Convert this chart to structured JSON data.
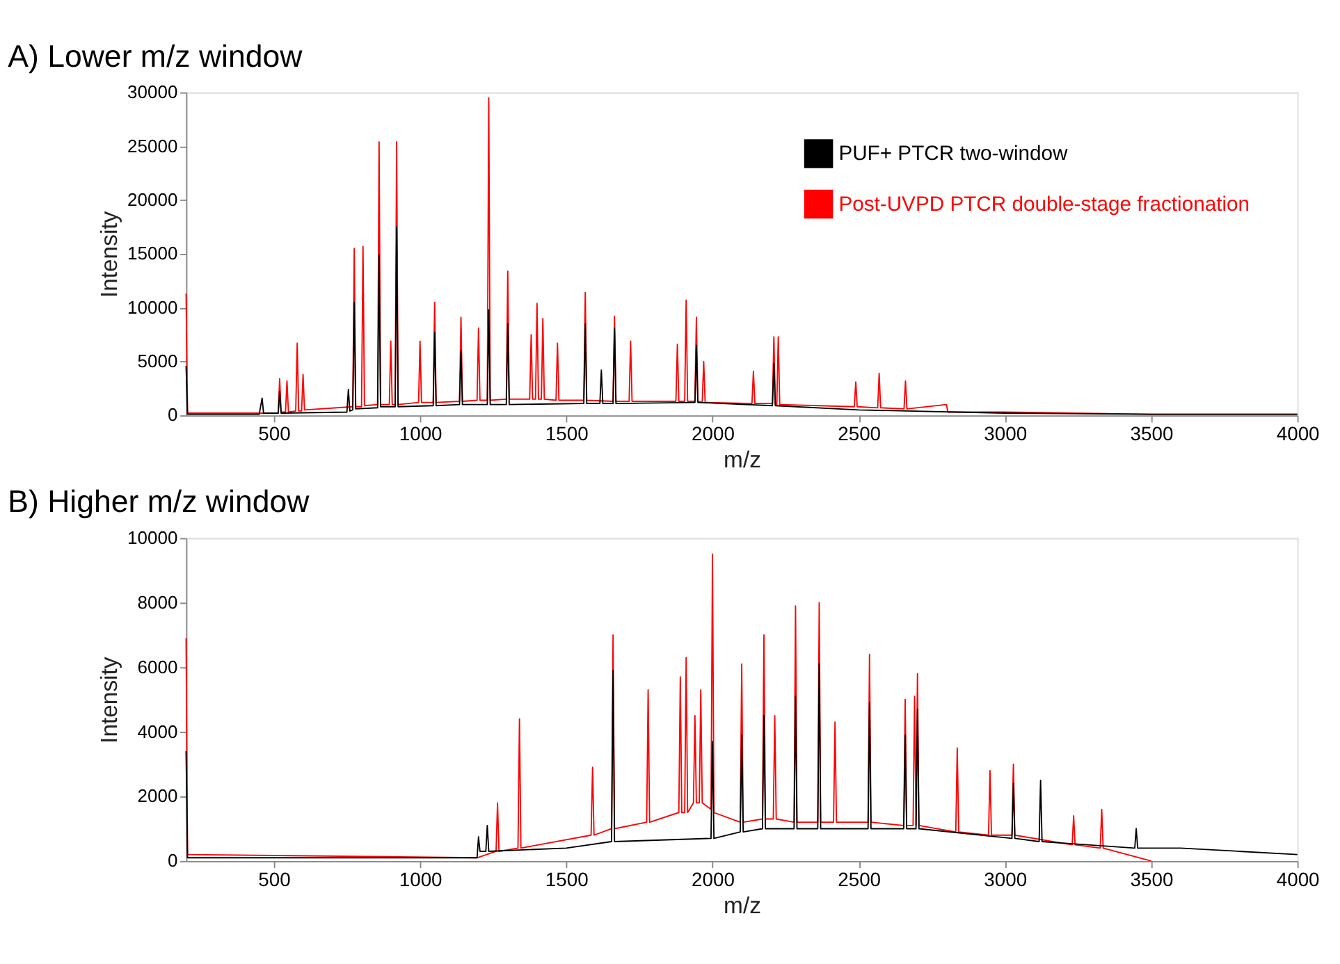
{
  "chart_data": [
    {
      "type": "line",
      "title": "A) Lower m/z window",
      "xlabel": "m/z",
      "ylabel": "Intensity",
      "xlim": [
        200,
        4000
      ],
      "xticks": [
        500,
        1000,
        1500,
        2000,
        2500,
        3000,
        3500,
        4000
      ],
      "ylim": [
        0,
        30000
      ],
      "yticks": [
        0,
        5000,
        10000,
        15000,
        20000,
        25000,
        30000
      ],
      "grid": false,
      "legend": "top right",
      "series": [
        {
          "name": "PUF+ PTCR two-window",
          "color": "#000000",
          "x": [
            200,
            205,
            450,
            460,
            465,
            515,
            520,
            525,
            750,
            755,
            760,
            770,
            775,
            780,
            855,
            860,
            865,
            915,
            920,
            925,
            1045,
            1050,
            1055,
            1135,
            1140,
            1145,
            1230,
            1235,
            1240,
            1295,
            1300,
            1305,
            1560,
            1565,
            1570,
            1615,
            1620,
            1625,
            1660,
            1665,
            1670,
            1940,
            1945,
            1950,
            2205,
            2210,
            2215,
            2500,
            3000,
            3500,
            4000
          ],
          "values": [
            4600,
            100,
            100,
            1600,
            200,
            200,
            2200,
            200,
            300,
            2400,
            400,
            500,
            10500,
            600,
            700,
            14900,
            800,
            800,
            17500,
            800,
            900,
            7700,
            900,
            1000,
            6000,
            1000,
            1000,
            9800,
            1000,
            1000,
            8500,
            1000,
            1100,
            8500,
            1100,
            1100,
            4200,
            1100,
            1100,
            8100,
            1100,
            1200,
            6500,
            1200,
            900,
            4800,
            900,
            500,
            200,
            100,
            100
          ]
        },
        {
          "name": "Post-UVPD PTCR double-stage fractionation",
          "color": "#ff0000",
          "x": [
            200,
            205,
            515,
            520,
            525,
            540,
            545,
            550,
            575,
            580,
            585,
            595,
            600,
            605,
            770,
            775,
            780,
            800,
            805,
            810,
            855,
            860,
            865,
            895,
            900,
            905,
            915,
            920,
            925,
            995,
            1000,
            1005,
            1045,
            1050,
            1055,
            1135,
            1140,
            1145,
            1195,
            1200,
            1205,
            1230,
            1235,
            1240,
            1295,
            1300,
            1305,
            1375,
            1380,
            1385,
            1395,
            1400,
            1405,
            1415,
            1420,
            1425,
            1465,
            1470,
            1475,
            1560,
            1565,
            1570,
            1660,
            1665,
            1670,
            1715,
            1720,
            1725,
            1875,
            1880,
            1885,
            1905,
            1910,
            1915,
            1940,
            1945,
            1950,
            1965,
            1970,
            1975,
            2135,
            2140,
            2145,
            2205,
            2210,
            2215,
            2220,
            2225,
            2230,
            2485,
            2490,
            2495,
            2565,
            2570,
            2575,
            2655,
            2660,
            2665,
            2800,
            2805,
            3000,
            3500,
            4000
          ],
          "values": [
            11300,
            200,
            200,
            3400,
            300,
            300,
            3200,
            300,
            400,
            6700,
            400,
            400,
            3800,
            500,
            800,
            15500,
            800,
            800,
            15700,
            900,
            1000,
            25400,
            1000,
            1000,
            6900,
            1000,
            1000,
            25400,
            1000,
            1200,
            6900,
            1200,
            1200,
            10500,
            1200,
            1300,
            9100,
            1300,
            1400,
            8100,
            1400,
            1400,
            29500,
            1400,
            1500,
            13400,
            1500,
            1500,
            7500,
            1500,
            1500,
            10400,
            1500,
            1500,
            9000,
            1500,
            1400,
            6700,
            1400,
            1400,
            11400,
            1400,
            1300,
            9200,
            1300,
            1300,
            6900,
            1300,
            1300,
            6600,
            1300,
            1300,
            10700,
            1300,
            1300,
            9100,
            1300,
            1200,
            5000,
            1200,
            1100,
            4100,
            1100,
            1100,
            7300,
            1000,
            1000,
            7300,
            1000,
            800,
            3100,
            800,
            700,
            3900,
            700,
            600,
            3200,
            600,
            1000,
            300,
            300,
            100,
            100
          ]
        }
      ]
    },
    {
      "type": "line",
      "title": "B) Higher m/z window",
      "xlabel": "m/z",
      "ylabel": "Intensity",
      "xlim": [
        200,
        4000
      ],
      "xticks": [
        500,
        1000,
        1500,
        2000,
        2500,
        3000,
        3500,
        4000
      ],
      "ylim": [
        0,
        10000
      ],
      "yticks": [
        0,
        2000,
        4000,
        6000,
        8000,
        10000
      ],
      "grid": false,
      "series": [
        {
          "color": "#000000",
          "x": [
            200,
            205,
            1195,
            1200,
            1205,
            1225,
            1230,
            1235,
            1500,
            1655,
            1660,
            1665,
            1995,
            2000,
            2005,
            2095,
            2100,
            2105,
            2171,
            2176,
            2181,
            2279,
            2284,
            2289,
            2360,
            2365,
            2370,
            2532,
            2537,
            2542,
            2654,
            2659,
            2664,
            2696,
            2701,
            2706,
            3024,
            3029,
            3034,
            3117,
            3122,
            3127,
            3444,
            3449,
            3454,
            3600,
            3800,
            4000
          ],
          "values": [
            3400,
            100,
            100,
            750,
            300,
            300,
            1100,
            300,
            400,
            600,
            5900,
            600,
            700,
            3700,
            700,
            900,
            3900,
            900,
            1000,
            4500,
            1000,
            1000,
            5100,
            1000,
            1000,
            6100,
            1000,
            1000,
            4900,
            1000,
            1000,
            3900,
            1000,
            1000,
            4700,
            1000,
            700,
            2400,
            700,
            600,
            2500,
            600,
            400,
            1000,
            400,
            400,
            300,
            200
          ]
        },
        {
          "color": "#ff0000",
          "x": [
            200,
            205,
            1195,
            1260,
            1265,
            1270,
            1335,
            1340,
            1345,
            1585,
            1590,
            1595,
            1655,
            1660,
            1665,
            1775,
            1780,
            1785,
            1885,
            1890,
            1895,
            1905,
            1910,
            1915,
            1935,
            1940,
            1945,
            1955,
            1960,
            1965,
            1995,
            2000,
            2005,
            2095,
            2100,
            2105,
            2171,
            2176,
            2181,
            2208,
            2213,
            2218,
            2279,
            2284,
            2289,
            2360,
            2365,
            2370,
            2414,
            2419,
            2424,
            2532,
            2537,
            2542,
            2654,
            2659,
            2664,
            2686,
            2691,
            2696,
            2701,
            2706,
            2832,
            2837,
            2842,
            2944,
            2949,
            2954,
            3024,
            3029,
            3034,
            3230,
            3235,
            3240,
            3326,
            3331,
            3336,
            3500
          ],
          "values": [
            6900,
            200,
            100,
            300,
            1800,
            300,
            400,
            4400,
            400,
            800,
            2900,
            800,
            1000,
            7000,
            1000,
            1200,
            5300,
            1200,
            1500,
            5700,
            1500,
            1500,
            6300,
            1500,
            1800,
            4500,
            1800,
            1800,
            5300,
            1800,
            1600,
            9500,
            1500,
            1200,
            6100,
            1200,
            1300,
            7000,
            1300,
            1300,
            4500,
            1300,
            1200,
            7900,
            1200,
            1200,
            8000,
            1200,
            1200,
            4300,
            1200,
            1200,
            6400,
            1200,
            1100,
            5000,
            1100,
            1100,
            5100,
            1100,
            5800,
            1100,
            900,
            3500,
            900,
            800,
            2800,
            800,
            800,
            3000,
            800,
            500,
            1400,
            500,
            400,
            1600,
            400,
            0
          ]
        }
      ]
    }
  ]
}
